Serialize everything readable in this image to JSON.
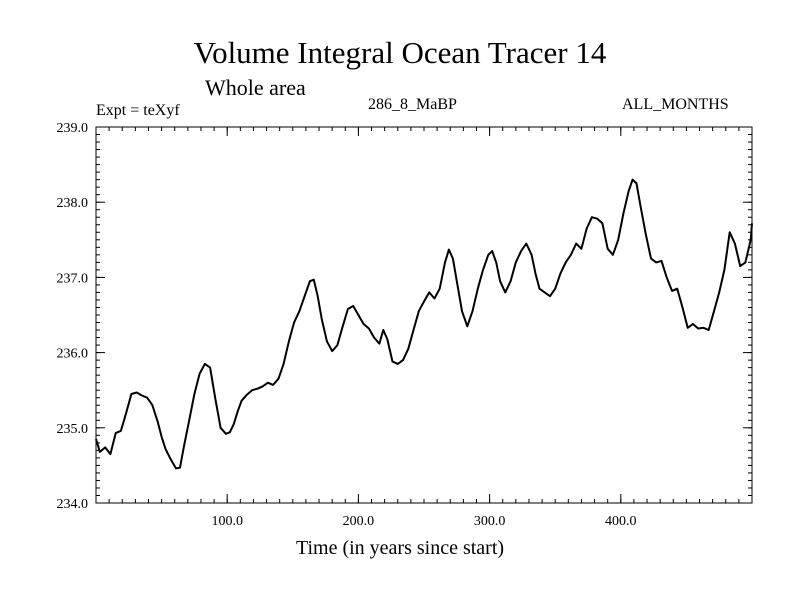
{
  "header": {
    "title": "Volume Integral Ocean Tracer 14",
    "subtitle": "Whole area",
    "expt": "Expt = teXyf",
    "period": "286_8_MaBP",
    "months": "ALL_MONTHS"
  },
  "chart_data": {
    "type": "line",
    "title": "Volume Integral Ocean Tracer 14",
    "subtitle": "Whole area",
    "xlabel": "Time (in years since start)",
    "ylabel": "",
    "xlim": [
      0,
      500
    ],
    "ylim": [
      234.0,
      239.0
    ],
    "x_ticks": [
      100,
      200,
      300,
      400
    ],
    "x_tick_labels": [
      "100.0",
      "200.0",
      "300.0",
      "400.0"
    ],
    "y_ticks": [
      234,
      235,
      236,
      237,
      238,
      239
    ],
    "y_tick_labels": [
      "234.0",
      "235.0",
      "236.0",
      "237.0",
      "238.0",
      "239.0"
    ],
    "grid": false,
    "series": [
      {
        "color": "#000000",
        "x": [
          0,
          3,
          7,
          11,
          15,
          19,
          23,
          27,
          31,
          35,
          39,
          43,
          47,
          50,
          53,
          57,
          61,
          64,
          67,
          71,
          75,
          79,
          83,
          87,
          91,
          95,
          99,
          102,
          105,
          108,
          111,
          115,
          119,
          123,
          127,
          131,
          135,
          139,
          143,
          147,
          151,
          155,
          159,
          163,
          166,
          169,
          172,
          176,
          180,
          184,
          188,
          192,
          196,
          200,
          204,
          208,
          212,
          216,
          219,
          222,
          226,
          230,
          234,
          238,
          242,
          246,
          250,
          254,
          258,
          262,
          266,
          269,
          272,
          275,
          279,
          283,
          287,
          291,
          295,
          299,
          302,
          305,
          308,
          312,
          316,
          320,
          324,
          328,
          332,
          335,
          338,
          342,
          346,
          350,
          354,
          358,
          362,
          366,
          370,
          374,
          378,
          382,
          386,
          390,
          394,
          398,
          402,
          406,
          409,
          412,
          415,
          419,
          423,
          427,
          431,
          435,
          439,
          443,
          447,
          451,
          455,
          459,
          463,
          467,
          471,
          475,
          479,
          483,
          487,
          491,
          495,
          499,
          500
        ],
        "y": [
          234.85,
          234.68,
          234.74,
          234.65,
          234.93,
          234.96,
          235.2,
          235.45,
          235.47,
          235.43,
          235.4,
          235.3,
          235.08,
          234.88,
          234.72,
          234.58,
          234.46,
          234.47,
          234.75,
          235.1,
          235.45,
          235.72,
          235.85,
          235.8,
          235.38,
          235.0,
          234.92,
          234.94,
          235.05,
          235.22,
          235.36,
          235.44,
          235.5,
          235.52,
          235.55,
          235.6,
          235.57,
          235.65,
          235.85,
          236.15,
          236.4,
          236.55,
          236.75,
          236.95,
          236.97,
          236.75,
          236.45,
          236.15,
          236.02,
          236.1,
          236.35,
          236.58,
          236.62,
          236.5,
          236.38,
          236.32,
          236.2,
          236.12,
          236.3,
          236.18,
          235.88,
          235.85,
          235.9,
          236.05,
          236.3,
          236.55,
          236.68,
          236.8,
          236.72,
          236.85,
          237.2,
          237.37,
          237.25,
          236.95,
          236.55,
          236.35,
          236.55,
          236.85,
          237.1,
          237.3,
          237.35,
          237.2,
          236.95,
          236.8,
          236.95,
          237.2,
          237.35,
          237.45,
          237.3,
          237.05,
          236.85,
          236.8,
          236.75,
          236.85,
          237.05,
          237.2,
          237.3,
          237.45,
          237.38,
          237.65,
          237.8,
          237.78,
          237.72,
          237.38,
          237.3,
          237.5,
          237.85,
          238.15,
          238.3,
          238.25,
          237.95,
          237.58,
          237.25,
          237.2,
          237.22,
          237.0,
          236.82,
          236.85,
          236.6,
          236.33,
          236.38,
          236.32,
          236.33,
          236.3,
          236.55,
          236.8,
          237.1,
          237.6,
          237.45,
          237.15,
          237.2,
          237.5,
          237.72
        ]
      }
    ]
  }
}
